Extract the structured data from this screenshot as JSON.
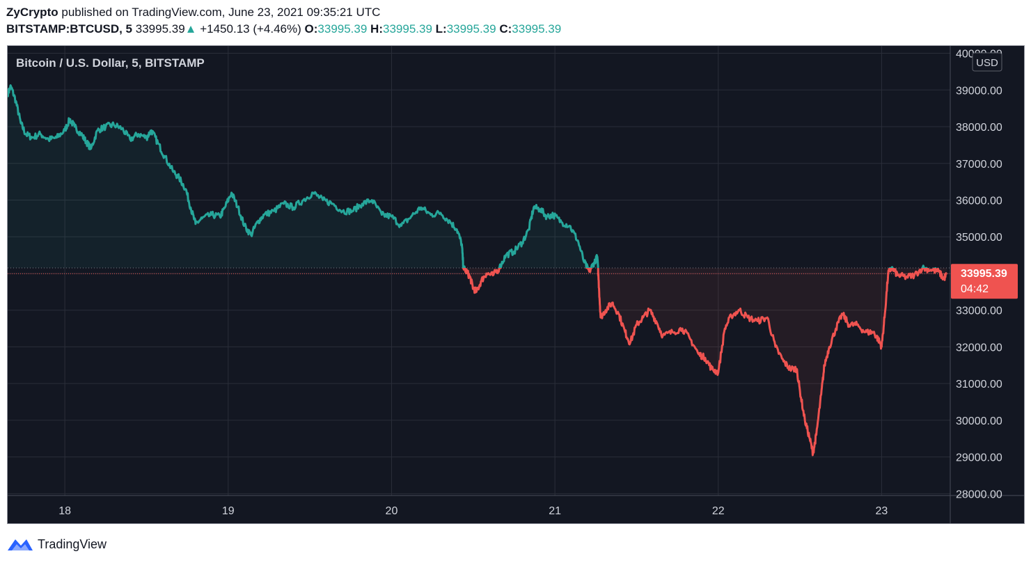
{
  "header": {
    "publisher": "ZyCrypto",
    "published_text": "published on TradingView.com, June 23, 2021 09:35:21 UTC",
    "symbol": "BITSTAMP:BTCUSD, 5",
    "last": "33995.39",
    "change": "+1450.13 (+4.46%)",
    "o_label": "O:",
    "o_value": "33995.39",
    "h_label": "H:",
    "h_value": "33995.39",
    "l_label": "L:",
    "l_value": "33995.39",
    "c_label": "C:",
    "c_value": "33995.39"
  },
  "footer": {
    "brand": "TradingView"
  },
  "colors": {
    "up": "#26a69a",
    "down": "#ef5350",
    "bg": "#131722",
    "grid": "#2a2e39",
    "text": "#d1d4dc"
  },
  "chart_data": {
    "type": "line",
    "title": "Bitcoin / U.S. Dollar, 5, BITSTAMP",
    "currency": "USD",
    "x_tick_labels": [
      "18",
      "19",
      "20",
      "21",
      "22",
      "23"
    ],
    "x_ticks_days": [
      18,
      19,
      20,
      21,
      22,
      23
    ],
    "xlim": [
      17.65,
      23.42
    ],
    "ylim": [
      27950,
      40200
    ],
    "y_ticks": [
      28000,
      29000,
      30000,
      31000,
      32000,
      33000,
      34000,
      35000,
      36000,
      37000,
      38000,
      39000,
      40000
    ],
    "y_tick_labels": [
      "28000.00",
      "29000.00",
      "30000.00",
      "31000.00",
      "32000.00",
      "33000.00",
      "34000.00",
      "35000.00",
      "36000.00",
      "37000.00",
      "38000.00",
      "39000.00",
      "40000.00"
    ],
    "baseline": 34150,
    "last_price": 33995.39,
    "last_price_label": "33995.39",
    "countdown": "04:42",
    "grid": true,
    "series": [
      {
        "points": [
          [
            17.65,
            38900
          ],
          [
            17.67,
            39100
          ],
          [
            17.7,
            38700
          ],
          [
            17.73,
            38100
          ],
          [
            17.76,
            37800
          ],
          [
            17.8,
            37700
          ],
          [
            17.85,
            37800
          ],
          [
            17.9,
            37650
          ],
          [
            17.95,
            37700
          ],
          [
            18.0,
            37900
          ],
          [
            18.03,
            38200
          ],
          [
            18.06,
            38000
          ],
          [
            18.1,
            37800
          ],
          [
            18.13,
            37600
          ],
          [
            18.16,
            37400
          ],
          [
            18.2,
            37900
          ],
          [
            18.25,
            38000
          ],
          [
            18.3,
            38050
          ],
          [
            18.35,
            37950
          ],
          [
            18.4,
            37650
          ],
          [
            18.45,
            37800
          ],
          [
            18.5,
            37700
          ],
          [
            18.53,
            37900
          ],
          [
            18.57,
            37550
          ],
          [
            18.61,
            37200
          ],
          [
            18.66,
            36800
          ],
          [
            18.7,
            36600
          ],
          [
            18.74,
            36300
          ],
          [
            18.77,
            35800
          ],
          [
            18.8,
            35350
          ],
          [
            18.84,
            35500
          ],
          [
            18.9,
            35600
          ],
          [
            18.95,
            35550
          ],
          [
            18.98,
            35800
          ],
          [
            19.02,
            36200
          ],
          [
            19.06,
            35800
          ],
          [
            19.1,
            35300
          ],
          [
            19.14,
            35050
          ],
          [
            19.18,
            35400
          ],
          [
            19.22,
            35600
          ],
          [
            19.28,
            35700
          ],
          [
            19.34,
            35900
          ],
          [
            19.4,
            35800
          ],
          [
            19.46,
            36000
          ],
          [
            19.52,
            36200
          ],
          [
            19.58,
            36000
          ],
          [
            19.64,
            35900
          ],
          [
            19.7,
            35700
          ],
          [
            19.76,
            35700
          ],
          [
            19.82,
            35900
          ],
          [
            19.88,
            36000
          ],
          [
            19.94,
            35600
          ],
          [
            20.0,
            35550
          ],
          [
            20.06,
            35300
          ],
          [
            20.12,
            35550
          ],
          [
            20.18,
            35800
          ],
          [
            20.24,
            35600
          ],
          [
            20.3,
            35650
          ],
          [
            20.36,
            35400
          ],
          [
            20.4,
            35200
          ],
          [
            20.43,
            34800
          ],
          [
            20.44,
            34150
          ],
          [
            20.46,
            34050
          ],
          [
            20.48,
            33900
          ],
          [
            20.5,
            33600
          ],
          [
            20.52,
            33500
          ],
          [
            20.55,
            33800
          ],
          [
            20.58,
            34000
          ],
          [
            20.62,
            33950
          ],
          [
            20.66,
            34150
          ],
          [
            20.7,
            34500
          ],
          [
            20.75,
            34600
          ],
          [
            20.8,
            34850
          ],
          [
            20.84,
            35200
          ],
          [
            20.87,
            35800
          ],
          [
            20.91,
            35750
          ],
          [
            20.95,
            35550
          ],
          [
            20.99,
            35600
          ],
          [
            21.04,
            35400
          ],
          [
            21.09,
            35300
          ],
          [
            21.14,
            34900
          ],
          [
            21.18,
            34300
          ],
          [
            21.21,
            34050
          ],
          [
            21.24,
            34300
          ],
          [
            21.26,
            34450
          ],
          [
            21.27,
            33600
          ],
          [
            21.28,
            32800
          ],
          [
            21.31,
            33000
          ],
          [
            21.35,
            33200
          ],
          [
            21.39,
            32900
          ],
          [
            21.43,
            32400
          ],
          [
            21.46,
            32100
          ],
          [
            21.5,
            32600
          ],
          [
            21.54,
            32800
          ],
          [
            21.58,
            33000
          ],
          [
            21.62,
            32700
          ],
          [
            21.66,
            32300
          ],
          [
            21.72,
            32400
          ],
          [
            21.78,
            32500
          ],
          [
            21.83,
            32200
          ],
          [
            21.88,
            31800
          ],
          [
            21.92,
            31700
          ],
          [
            21.96,
            31400
          ],
          [
            22.0,
            31300
          ],
          [
            22.04,
            32500
          ],
          [
            22.08,
            32850
          ],
          [
            22.13,
            33000
          ],
          [
            22.18,
            32800
          ],
          [
            22.24,
            32700
          ],
          [
            22.3,
            32800
          ],
          [
            22.35,
            32000
          ],
          [
            22.4,
            31600
          ],
          [
            22.44,
            31400
          ],
          [
            22.48,
            31400
          ],
          [
            22.5,
            30800
          ],
          [
            22.53,
            30000
          ],
          [
            22.56,
            29500
          ],
          [
            22.58,
            29100
          ],
          [
            22.6,
            29600
          ],
          [
            22.63,
            30700
          ],
          [
            22.65,
            31500
          ],
          [
            22.68,
            32000
          ],
          [
            22.72,
            32500
          ],
          [
            22.76,
            32900
          ],
          [
            22.8,
            32600
          ],
          [
            22.85,
            32600
          ],
          [
            22.9,
            32400
          ],
          [
            22.95,
            32400
          ],
          [
            22.98,
            32200
          ],
          [
            23.0,
            32000
          ],
          [
            23.02,
            32900
          ],
          [
            23.04,
            34000
          ],
          [
            23.06,
            34150
          ],
          [
            23.1,
            33950
          ],
          [
            23.15,
            33900
          ],
          [
            23.2,
            33950
          ],
          [
            23.25,
            34150
          ],
          [
            23.3,
            34100
          ],
          [
            23.35,
            34050
          ],
          [
            23.38,
            33850
          ],
          [
            23.4,
            33995.39
          ]
        ]
      }
    ]
  }
}
